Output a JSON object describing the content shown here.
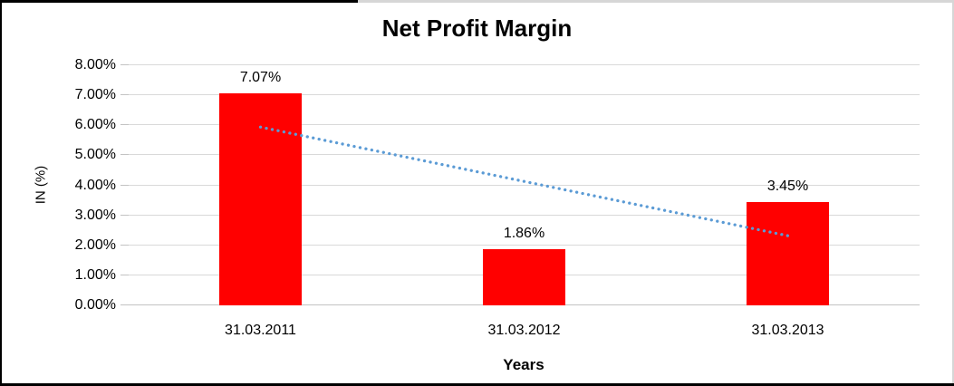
{
  "chart_data": {
    "type": "bar",
    "title": "Net Profit Margin",
    "xlabel": "Years",
    "ylabel": "IN (%)",
    "categories": [
      "31.03.2011",
      "31.03.2012",
      "31.03.2013"
    ],
    "values": [
      7.07,
      1.86,
      3.45
    ],
    "data_labels": [
      "7.07%",
      "1.86%",
      "3.45%"
    ],
    "y_ticks": [
      "0.00%",
      "1.00%",
      "2.00%",
      "3.00%",
      "4.00%",
      "5.00%",
      "6.00%",
      "7.00%",
      "8.00%"
    ],
    "ylim": [
      0,
      8
    ],
    "grid": true,
    "legend": "none",
    "bar_color": "#ff0000",
    "trendline": {
      "type": "linear",
      "style": "dotted",
      "color": "#5b9bd5",
      "start_value": 5.94,
      "end_value": 2.32
    }
  }
}
